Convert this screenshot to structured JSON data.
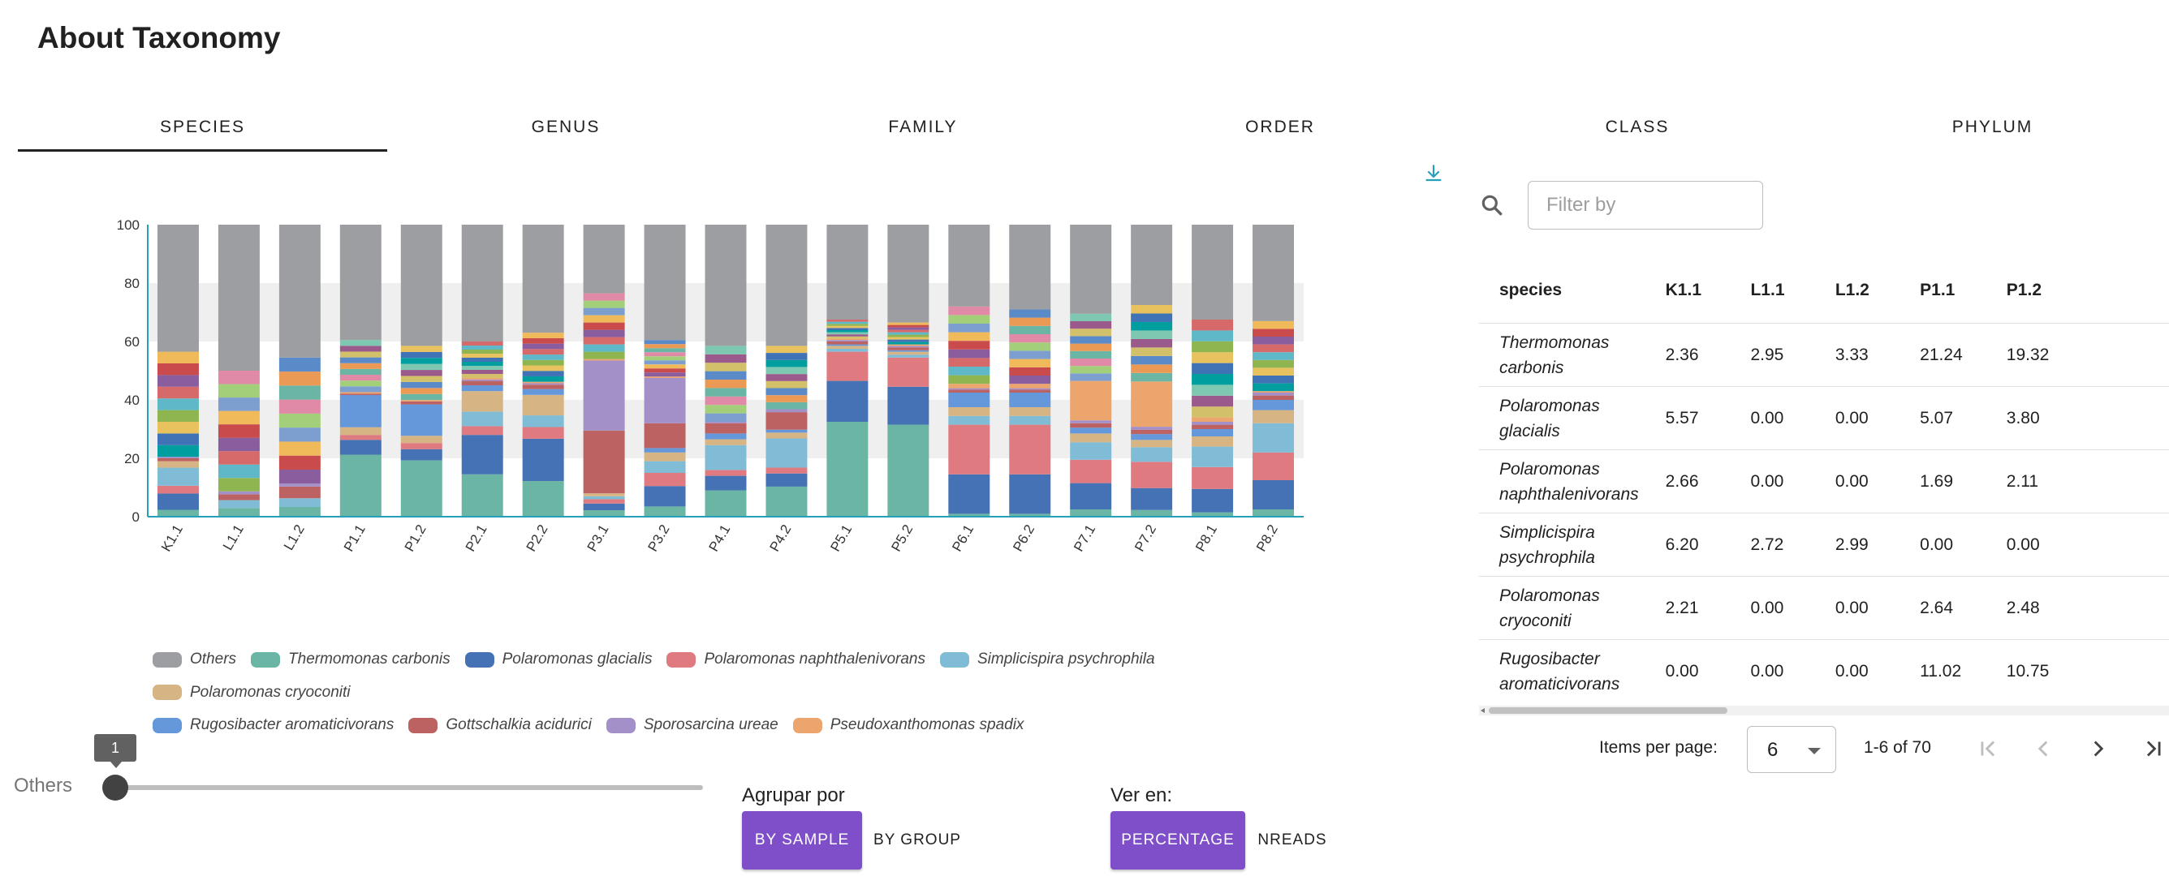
{
  "page": {
    "title": "About Taxonomy"
  },
  "tabs": [
    "SPECIES",
    "GENUS",
    "FAMILY",
    "ORDER",
    "CLASS",
    "PHYLUM"
  ],
  "active_tab": "SPECIES",
  "chart_data": {
    "type": "bar",
    "stacked": true,
    "ylim": [
      0,
      100
    ],
    "yticks": [
      "0",
      "20",
      "40",
      "60",
      "80",
      "100"
    ],
    "categories": [
      "K1.1",
      "L1.1",
      "L1.2",
      "P1.1",
      "P1.2",
      "P2.1",
      "P2.2",
      "P3.1",
      "P3.2",
      "P4.1",
      "P4.2",
      "P5.1",
      "P5.2",
      "P6.1",
      "P6.2",
      "P7.1",
      "P7.2",
      "P8.1",
      "P8.2"
    ],
    "series": [
      {
        "name": "Thermomonas carbonis",
        "color": "#6ab5a3",
        "values": [
          2.36,
          2.95,
          3.33,
          21.24,
          19.32,
          14.5,
          12.2,
          2.2,
          3.5,
          9.0,
          10.3,
          32.5,
          31.5,
          1.0,
          1.0,
          2.5,
          2.3,
          1.5,
          2.5
        ]
      },
      {
        "name": "Polaromonas glacialis",
        "color": "#4472b4",
        "values": [
          5.57,
          0,
          0,
          5.07,
          3.8,
          13.5,
          14.5,
          2.3,
          7.0,
          5.0,
          4.5,
          14.0,
          13.0,
          13.5,
          13.5,
          9.0,
          7.5,
          8.0,
          10.0
        ]
      },
      {
        "name": "Polaromonas naphthalenivorans",
        "color": "#de7a80",
        "values": [
          2.66,
          0,
          0,
          1.69,
          2.11,
          3.0,
          4.0,
          1.5,
          4.5,
          2.0,
          2.0,
          10.0,
          10.0,
          17.0,
          17.0,
          8.0,
          9.0,
          7.5,
          9.5
        ]
      },
      {
        "name": "Simplicispira psychrophila",
        "color": "#81bcd6",
        "values": [
          6.2,
          2.72,
          2.99,
          0,
          0,
          5.0,
          4.0,
          1.0,
          4.0,
          8.5,
          10.0,
          1.0,
          1.0,
          3.0,
          3.0,
          6.0,
          5.0,
          7.0,
          10.0
        ]
      },
      {
        "name": "Polaromonas cryoconiti",
        "color": "#d6b484",
        "values": [
          2.21,
          0,
          0,
          2.64,
          2.48,
          7.0,
          7.0,
          1.0,
          3.0,
          2.0,
          2.0,
          1.0,
          1.0,
          3.0,
          3.0,
          3.0,
          2.5,
          3.5,
          4.5
        ]
      },
      {
        "name": "Rugosibacter aromaticivorans",
        "color": "#6597db",
        "values": [
          0,
          0,
          0,
          11.02,
          10.75,
          2.0,
          2.0,
          0,
          1.5,
          2.0,
          1.0,
          0.5,
          0.5,
          5.0,
          5.0,
          2.0,
          2.0,
          2.5,
          3.5
        ]
      },
      {
        "name": "Gottschalkia acidurici",
        "color": "#bd6262",
        "values": [
          1.0,
          2.0,
          4.0,
          0.5,
          1.0,
          1.5,
          1.5,
          21.5,
          8.5,
          3.5,
          6.0,
          1.0,
          1.0,
          1.0,
          1.0,
          1.5,
          1.5,
          1.5,
          1.5
        ]
      },
      {
        "name": "Sporosarcina ureae",
        "color": "#a490c9",
        "values": [
          0.5,
          1.0,
          1.0,
          0,
          0,
          0.5,
          0.5,
          24.0,
          15.5,
          0.5,
          1.0,
          0.5,
          0.5,
          0.5,
          0.5,
          1.0,
          1.0,
          1.0,
          1.0
        ]
      },
      {
        "name": "Pseudoxanthomonas spadix",
        "color": "#eda56e",
        "values": [
          0,
          0,
          0,
          0.5,
          0.5,
          0.5,
          0.5,
          0.5,
          0.5,
          0,
          0,
          0.5,
          0.5,
          1.5,
          1.5,
          13.5,
          15.5,
          1.5,
          0.5
        ]
      },
      {
        "name": "Others",
        "color": "#9c9ea1",
        "values": [
          43.5,
          50.0,
          45.5,
          39.5,
          41.5,
          40.0,
          37.0,
          23.5,
          39.5,
          41.5,
          41.5,
          32.5,
          33.5,
          28.0,
          29.0,
          30.5,
          27.5,
          32.5,
          33.0
        ]
      }
    ]
  },
  "legend_entries": [
    {
      "name": "Others",
      "color": "#9c9ea1"
    },
    {
      "name": "Thermomonas carbonis",
      "color": "#6ab5a3"
    },
    {
      "name": "Polaromonas glacialis",
      "color": "#4472b4"
    },
    {
      "name": "Polaromonas naphthalenivorans",
      "color": "#de7a80"
    },
    {
      "name": "Simplicispira psychrophila",
      "color": "#81bcd6"
    },
    {
      "name": "Polaromonas cryoconiti",
      "color": "#d6b484"
    },
    {
      "name": "Rugosibacter aromaticivorans",
      "color": "#6597db"
    },
    {
      "name": "Gottschalkia acidurici",
      "color": "#bd6262"
    },
    {
      "name": "Sporosarcina ureae",
      "color": "#a490c9"
    },
    {
      "name": "Pseudoxanthomonas spadix",
      "color": "#eda56e"
    }
  ],
  "minor_palette": [
    "#009e9e",
    "#3f73b6",
    "#e8c25e",
    "#8fb550",
    "#5fb8c7",
    "#d66a6a",
    "#8a5d9e",
    "#c94b4b",
    "#f0b95a",
    "#7c9fd0",
    "#a4cf7a",
    "#e08aa8",
    "#6ab5a3",
    "#ea9a55",
    "#5a8ac7",
    "#d2c16a",
    "#9a5a8c",
    "#7ec7b1"
  ],
  "others_slider": {
    "label": "Others",
    "value": "1"
  },
  "group_by": {
    "label": "Agrupar por",
    "options": [
      "BY SAMPLE",
      "BY GROUP"
    ],
    "selected": "BY SAMPLE"
  },
  "view_in": {
    "label": "Ver en:",
    "options": [
      "PERCENTAGE",
      "NREADS"
    ],
    "selected": "PERCENTAGE"
  },
  "filter": {
    "placeholder": "Filter by"
  },
  "table": {
    "columns": [
      "species",
      "K1.1",
      "L1.1",
      "L1.2",
      "P1.1",
      "P1.2"
    ],
    "rows": [
      {
        "name": [
          "Thermomonas",
          "carbonis"
        ],
        "values": [
          "2.36",
          "2.95",
          "3.33",
          "21.24",
          "19.32"
        ]
      },
      {
        "name": [
          "Polaromonas",
          "glacialis"
        ],
        "values": [
          "5.57",
          "0.00",
          "0.00",
          "5.07",
          "3.80"
        ]
      },
      {
        "name": [
          "Polaromonas",
          "naphthalenivorans"
        ],
        "values": [
          "2.66",
          "0.00",
          "0.00",
          "1.69",
          "2.11"
        ]
      },
      {
        "name": [
          "Simplicispira",
          "psychrophila"
        ],
        "values": [
          "6.20",
          "2.72",
          "2.99",
          "0.00",
          "0.00"
        ]
      },
      {
        "name": [
          "Polaromonas",
          "cryoconiti"
        ],
        "values": [
          "2.21",
          "0.00",
          "0.00",
          "2.64",
          "2.48"
        ]
      },
      {
        "name": [
          "Rugosibacter",
          "aromaticivorans"
        ],
        "values": [
          "0.00",
          "0.00",
          "0.00",
          "11.02",
          "10.75"
        ]
      }
    ]
  },
  "pagination": {
    "items_per_page_label": "Items per page:",
    "items_per_page": "6",
    "range": "1-6 of 70"
  },
  "colors": {
    "accent": "#7e4fc9",
    "axis": "#26a0b8",
    "download": "#26a0b8"
  }
}
